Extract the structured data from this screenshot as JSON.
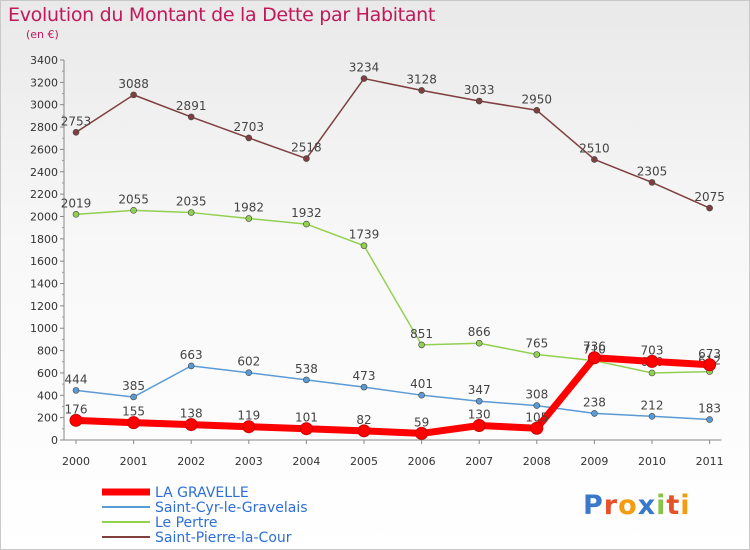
{
  "title": "Evolution du Montant de la Dette par Habitant",
  "subtitle": "(en €)",
  "logo": "Proxiti",
  "chart_data": {
    "type": "line",
    "title": "Evolution du Montant de la Dette par Habitant",
    "ylabel": "(en €)",
    "xlabel": "",
    "x": [
      "2000",
      "2001",
      "2002",
      "2003",
      "2004",
      "2005",
      "2006",
      "2007",
      "2008",
      "2009",
      "2010",
      "2011"
    ],
    "ylim": [
      0,
      3400
    ],
    "ytick_step": 200,
    "grid": false,
    "legend_position": "bottom-left",
    "series": [
      {
        "name": "LA GRAVELLE",
        "color": "#ff0000",
        "values": [
          176,
          155,
          138,
          119,
          101,
          82,
          59,
          130,
          105,
          736,
          703,
          673
        ]
      },
      {
        "name": "Saint-Cyr-le-Gravelais",
        "color": "#5b9bd5",
        "values": [
          444,
          385,
          663,
          602,
          538,
          473,
          401,
          347,
          308,
          238,
          212,
          183
        ]
      },
      {
        "name": "Le Pertre",
        "color": "#92d050",
        "values": [
          2019,
          2055,
          2035,
          1982,
          1932,
          1739,
          851,
          866,
          765,
          710,
          600,
          612
        ]
      },
      {
        "name": "Saint-Pierre-la-Cour",
        "color": "#7f3f3f",
        "values": [
          2753,
          3088,
          2891,
          2703,
          2518,
          3234,
          3128,
          3033,
          2950,
          2510,
          2305,
          2075
        ]
      }
    ]
  }
}
